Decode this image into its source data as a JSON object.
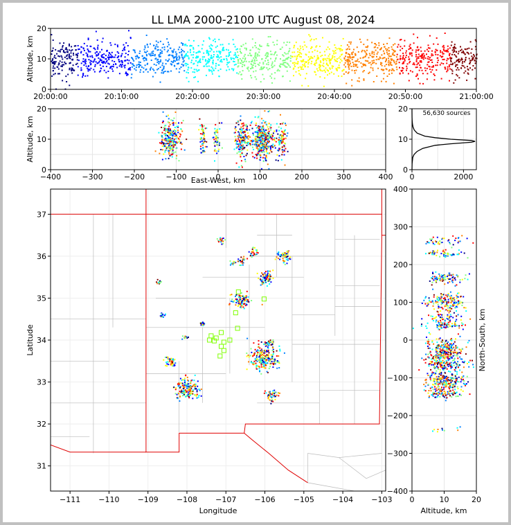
{
  "title": "LL LMA 2000-2100 UTC August 08, 2024",
  "colors": {
    "jet": [
      "#00007f",
      "#0000ff",
      "#007fff",
      "#00ffff",
      "#7fff7f",
      "#ffff00",
      "#ff7f00",
      "#ff0000",
      "#7f0000"
    ],
    "state_border": "#e00000",
    "county_border": "#bbbbbb",
    "station_marker": "#7fff00",
    "histogram_line": "#000000"
  },
  "chart_data": [
    {
      "id": "time-altitude",
      "type": "scatter",
      "xlabel": "",
      "ylabel": "Altitude, km",
      "xlim": [
        "20:00:00",
        "21:00:00"
      ],
      "ylim": [
        0,
        20
      ],
      "xticks": [
        "20:00:00",
        "20:10:00",
        "20:20:00",
        "20:30:00",
        "20:40:00",
        "20:50:00",
        "21:00:00"
      ],
      "yticks": [
        "0",
        "10",
        "20"
      ],
      "color_by": "time",
      "altitude_center_km": 10
    },
    {
      "id": "eastwest-altitude",
      "type": "scatter",
      "xlabel": "East-West, km",
      "ylabel": "Altitude, km",
      "xlim": [
        -400,
        400
      ],
      "ylim": [
        0,
        20
      ],
      "xticks": [
        "−400",
        "−300",
        "−200",
        "−100",
        "0",
        "100",
        "200",
        "300",
        "400"
      ],
      "yticks": [
        "0",
        "10",
        "20"
      ],
      "clusters": [
        {
          "x": -115,
          "spread": 20,
          "count": 260
        },
        {
          "x": -38,
          "spread": 6,
          "count": 60
        },
        {
          "x": -5,
          "spread": 8,
          "count": 50
        },
        {
          "x": 55,
          "spread": 14,
          "count": 160
        },
        {
          "x": 105,
          "spread": 22,
          "count": 360
        },
        {
          "x": 150,
          "spread": 10,
          "count": 90
        }
      ]
    },
    {
      "id": "altitude-histogram",
      "type": "line",
      "annotation": "56,630 sources",
      "xlim": [
        0,
        2500
      ],
      "ylim": [
        0,
        20
      ],
      "xticks": [
        "0",
        "2000"
      ],
      "yticks": [
        "0",
        "10",
        "20"
      ],
      "counts_by_altitude": [
        [
          0,
          0
        ],
        [
          2,
          5
        ],
        [
          4,
          30
        ],
        [
          5,
          80
        ],
        [
          6,
          200
        ],
        [
          7,
          420
        ],
        [
          8,
          900
        ],
        [
          8.5,
          1500
        ],
        [
          9,
          2300
        ],
        [
          9.3,
          2450
        ],
        [
          9.6,
          2300
        ],
        [
          10,
          1500
        ],
        [
          10.5,
          900
        ],
        [
          11,
          500
        ],
        [
          12,
          200
        ],
        [
          13,
          90
        ],
        [
          14,
          40
        ],
        [
          15,
          20
        ],
        [
          16,
          8
        ],
        [
          17,
          3
        ],
        [
          19,
          1
        ],
        [
          20,
          0
        ]
      ]
    },
    {
      "id": "plan-view",
      "type": "scatter",
      "xlabel": "Longitude",
      "ylabel": "Latitude",
      "xlim": [
        -111.5,
        -102.9
      ],
      "ylim": [
        30.4,
        37.6
      ],
      "xticks": [
        "−111",
        "−110",
        "−109",
        "−108",
        "−107",
        "−106",
        "−105",
        "−104",
        "−103"
      ],
      "yticks": [
        "31",
        "32",
        "33",
        "34",
        "35",
        "36",
        "37"
      ],
      "storm_cells": [
        {
          "lon": -108.0,
          "lat": 32.85,
          "count": 160
        },
        {
          "lon": -108.45,
          "lat": 33.5,
          "count": 50
        },
        {
          "lon": -106.05,
          "lat": 33.6,
          "count": 220
        },
        {
          "lon": -105.85,
          "lat": 32.7,
          "count": 50
        },
        {
          "lon": -106.6,
          "lat": 34.95,
          "count": 100
        },
        {
          "lon": -106.0,
          "lat": 35.5,
          "count": 70
        },
        {
          "lon": -105.55,
          "lat": 36.0,
          "count": 60
        },
        {
          "lon": -106.3,
          "lat": 36.1,
          "count": 25
        },
        {
          "lon": -106.6,
          "lat": 35.9,
          "count": 25
        },
        {
          "lon": -107.15,
          "lat": 36.4,
          "count": 20
        },
        {
          "lon": -108.65,
          "lat": 34.6,
          "count": 15
        },
        {
          "lon": -107.6,
          "lat": 34.4,
          "count": 15
        },
        {
          "lon": -108.05,
          "lat": 34.1,
          "count": 10
        },
        {
          "lon": -108.75,
          "lat": 35.4,
          "count": 10
        },
        {
          "lon": -105.9,
          "lat": 33.95,
          "count": 25
        },
        {
          "lon": -106.85,
          "lat": 35.85,
          "count": 12
        },
        {
          "lon": -105.75,
          "lat": 33.5,
          "count": 12
        }
      ],
      "stations": [
        {
          "lon": -106.68,
          "lat": 35.15
        },
        {
          "lon": -106.02,
          "lat": 34.98
        },
        {
          "lon": -106.75,
          "lat": 34.65
        },
        {
          "lon": -107.12,
          "lat": 34.18
        },
        {
          "lon": -107.25,
          "lat": 34.05
        },
        {
          "lon": -107.42,
          "lat": 34.0
        },
        {
          "lon": -107.3,
          "lat": 33.98
        },
        {
          "lon": -107.05,
          "lat": 33.95
        },
        {
          "lon": -107.12,
          "lat": 33.85
        },
        {
          "lon": -106.9,
          "lat": 34.0
        },
        {
          "lon": -107.05,
          "lat": 33.75
        },
        {
          "lon": -107.15,
          "lat": 33.62
        },
        {
          "lon": -106.7,
          "lat": 34.28
        },
        {
          "lon": -107.38,
          "lat": 34.1
        }
      ]
    },
    {
      "id": "altitude-northsouth",
      "type": "scatter",
      "xlabel": "Altitude, km",
      "ylabel": "North-South, km",
      "xlim": [
        0,
        20
      ],
      "ylim": [
        -400,
        400
      ],
      "xticks": [
        "0",
        "10",
        "20"
      ],
      "yticks": [
        "−400",
        "−300",
        "−200",
        "−100",
        "0",
        "100",
        "200",
        "300",
        "400"
      ],
      "clusters": [
        {
          "y": 265,
          "spread": 12,
          "count": 40
        },
        {
          "y": 230,
          "spread": 10,
          "count": 50
        },
        {
          "y": 165,
          "spread": 15,
          "count": 80
        },
        {
          "y": 100,
          "spread": 20,
          "count": 160
        },
        {
          "y": 60,
          "spread": 10,
          "count": 50
        },
        {
          "y": 40,
          "spread": 8,
          "count": 60
        },
        {
          "y": -20,
          "spread": 25,
          "count": 200
        },
        {
          "y": -60,
          "spread": 25,
          "count": 200
        },
        {
          "y": -110,
          "spread": 20,
          "count": 200
        },
        {
          "y": -140,
          "spread": 10,
          "count": 80
        },
        {
          "y": -235,
          "spread": 5,
          "count": 10
        }
      ]
    }
  ]
}
